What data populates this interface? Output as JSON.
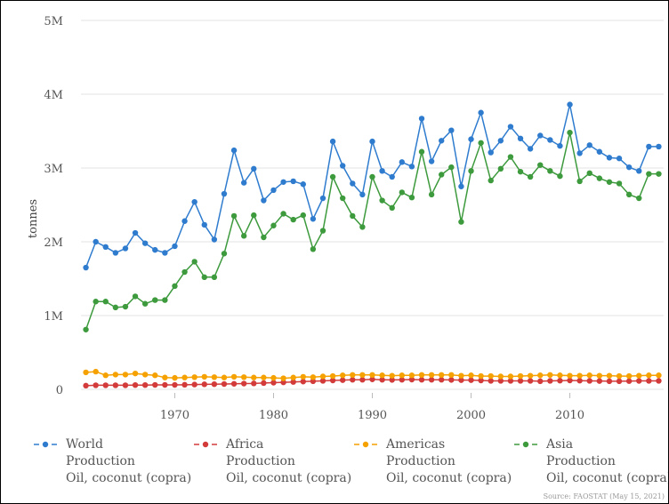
{
  "chart_data": {
    "type": "line",
    "ylabel": "tonnes",
    "ylim": [
      0,
      5000000
    ],
    "xlim": [
      1960.5,
      2019.5
    ],
    "y_ticks": [
      {
        "value": 0,
        "label": "0"
      },
      {
        "value": 1000000,
        "label": "1M"
      },
      {
        "value": 2000000,
        "label": "2M"
      },
      {
        "value": 3000000,
        "label": "3M"
      },
      {
        "value": 4000000,
        "label": "4M"
      },
      {
        "value": 5000000,
        "label": "5M"
      }
    ],
    "x_ticks": [
      {
        "value": 1970,
        "label": "1970"
      },
      {
        "value": 1980,
        "label": "1980"
      },
      {
        "value": 1990,
        "label": "1990"
      },
      {
        "value": 2000,
        "label": "2000"
      },
      {
        "value": 2010,
        "label": "2010"
      }
    ],
    "legend_position": "bottom",
    "grid": "horizontal",
    "x": [
      1961,
      1962,
      1963,
      1964,
      1965,
      1966,
      1967,
      1968,
      1969,
      1970,
      1971,
      1972,
      1973,
      1974,
      1975,
      1976,
      1977,
      1978,
      1979,
      1980,
      1981,
      1982,
      1983,
      1984,
      1985,
      1986,
      1987,
      1988,
      1989,
      1990,
      1991,
      1992,
      1993,
      1994,
      1995,
      1996,
      1997,
      1998,
      1999,
      2000,
      2001,
      2002,
      2003,
      2004,
      2005,
      2006,
      2007,
      2008,
      2009,
      2010,
      2011,
      2012,
      2013,
      2014,
      2015,
      2016,
      2017,
      2018,
      2019
    ],
    "series": [
      {
        "name": "World",
        "legend_lines": [
          "World",
          "Production",
          "Oil, coconut (copra)"
        ],
        "color": "#2f7ccf",
        "values": [
          1650000,
          2000000,
          1930000,
          1850000,
          1910000,
          2120000,
          1980000,
          1890000,
          1850000,
          1940000,
          2280000,
          2540000,
          2230000,
          2030000,
          2650000,
          3240000,
          2800000,
          2990000,
          2560000,
          2700000,
          2810000,
          2820000,
          2780000,
          2310000,
          2590000,
          3360000,
          3030000,
          2790000,
          2640000,
          3360000,
          2960000,
          2880000,
          3080000,
          3020000,
          3670000,
          3090000,
          3370000,
          3510000,
          2750000,
          3390000,
          3750000,
          3210000,
          3370000,
          3560000,
          3400000,
          3260000,
          3440000,
          3380000,
          3300000,
          3860000,
          3200000,
          3310000,
          3220000,
          3140000,
          3130000,
          3010000,
          2960000,
          3290000,
          3290000
        ]
      },
      {
        "name": "Africa",
        "legend_lines": [
          "Africa",
          "Production",
          "Oil, coconut (copra)"
        ],
        "color": "#d33b3b",
        "values": [
          50000,
          55000,
          55000,
          55000,
          55000,
          58000,
          58000,
          60000,
          60000,
          60000,
          62000,
          65000,
          68000,
          70000,
          72000,
          75000,
          78000,
          80000,
          85000,
          90000,
          95000,
          100000,
          105000,
          110000,
          115000,
          120000,
          125000,
          130000,
          130000,
          135000,
          130000,
          128000,
          130000,
          132000,
          130000,
          130000,
          130000,
          128000,
          125000,
          125000,
          120000,
          115000,
          115000,
          115000,
          115000,
          115000,
          110000,
          115000,
          118000,
          120000,
          118000,
          115000,
          113000,
          110000,
          110000,
          112000,
          114000,
          115000,
          115000
        ]
      },
      {
        "name": "Americas",
        "legend_lines": [
          "Americas",
          "Production",
          "Oil, coconut (copra)"
        ],
        "color": "#f5a100",
        "values": [
          230000,
          240000,
          190000,
          200000,
          200000,
          215000,
          200000,
          190000,
          160000,
          155000,
          160000,
          165000,
          170000,
          165000,
          160000,
          170000,
          165000,
          160000,
          160000,
          155000,
          150000,
          160000,
          170000,
          165000,
          175000,
          180000,
          190000,
          195000,
          195000,
          195000,
          190000,
          185000,
          190000,
          190000,
          195000,
          195000,
          195000,
          195000,
          185000,
          190000,
          180000,
          180000,
          175000,
          175000,
          180000,
          185000,
          190000,
          195000,
          190000,
          185000,
          185000,
          190000,
          185000,
          185000,
          180000,
          180000,
          185000,
          190000,
          190000
        ]
      },
      {
        "name": "Asia",
        "legend_lines": [
          "Asia",
          "Production",
          "Oil, coconut (copra)"
        ],
        "color": "#3d9a3d",
        "values": [
          810000,
          1190000,
          1190000,
          1110000,
          1120000,
          1260000,
          1160000,
          1210000,
          1210000,
          1400000,
          1590000,
          1730000,
          1520000,
          1520000,
          1840000,
          2350000,
          2080000,
          2360000,
          2060000,
          2220000,
          2380000,
          2300000,
          2360000,
          1900000,
          2150000,
          2880000,
          2590000,
          2350000,
          2200000,
          2880000,
          2560000,
          2460000,
          2670000,
          2600000,
          3220000,
          2640000,
          2910000,
          3010000,
          2270000,
          2960000,
          3340000,
          2830000,
          2990000,
          3150000,
          2950000,
          2880000,
          3040000,
          2960000,
          2890000,
          3480000,
          2820000,
          2930000,
          2860000,
          2810000,
          2790000,
          2640000,
          2590000,
          2920000,
          2920000
        ]
      }
    ]
  },
  "source_text": "Source: FAOSTAT (May 15, 2021)"
}
